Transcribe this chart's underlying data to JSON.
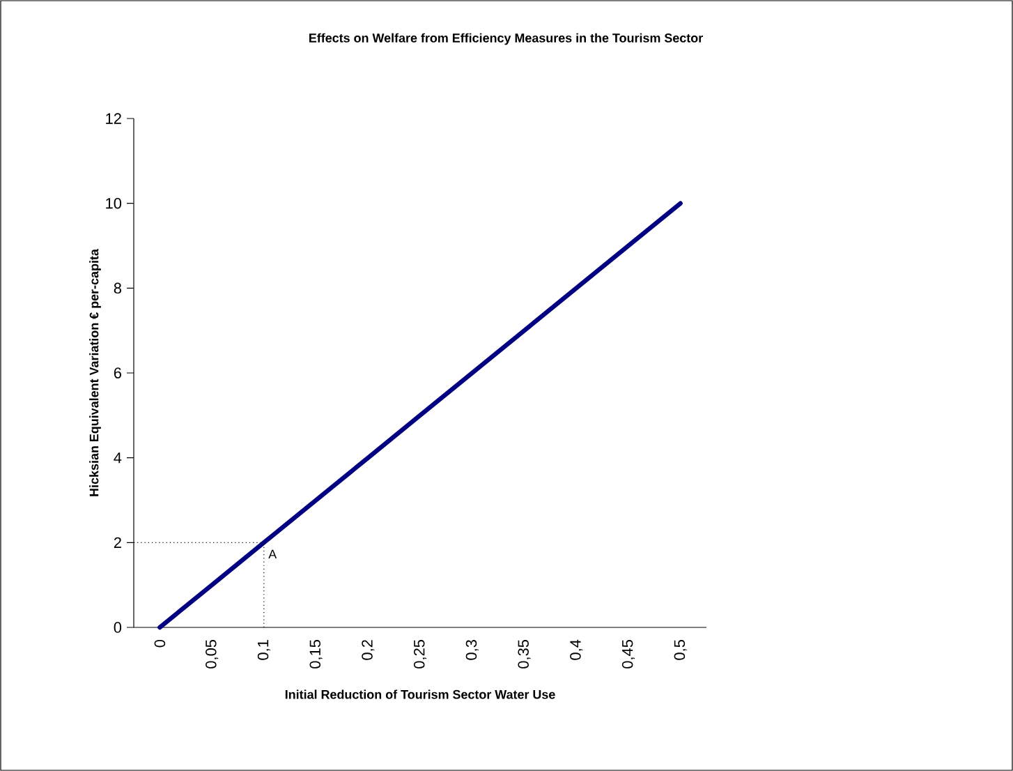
{
  "chart_data": {
    "type": "line",
    "title": "Effects on Welfare from Efficiency Measures in the Tourism Sector",
    "xlabel": "Initial Reduction of Tourism Sector Water Use",
    "ylabel": "Hicksian Equivalent Variation € per-capita",
    "categories": [
      "0",
      "0,05",
      "0,1",
      "0,15",
      "0,2",
      "0,25",
      "0,3",
      "0,35",
      "0,4",
      "0,45",
      "0,5"
    ],
    "series": [
      {
        "color": "#000080",
        "values": [
          0,
          1,
          2,
          3,
          4,
          5,
          6,
          7,
          8,
          9,
          10
        ]
      }
    ],
    "ylim": [
      0,
      12
    ],
    "yticks": [
      0,
      2,
      4,
      6,
      8,
      10,
      12
    ],
    "marker": "none",
    "line_style": "solid",
    "ref_lines": [
      {
        "axis": "y",
        "value": 2,
        "color": "#000000",
        "line_style": "dotted"
      },
      {
        "axis": "x",
        "value": "0,1",
        "color": "#000000",
        "line_style": "dotted"
      }
    ],
    "annotations": [
      {
        "text": "A",
        "x": "0,1",
        "y": 2
      }
    ]
  }
}
